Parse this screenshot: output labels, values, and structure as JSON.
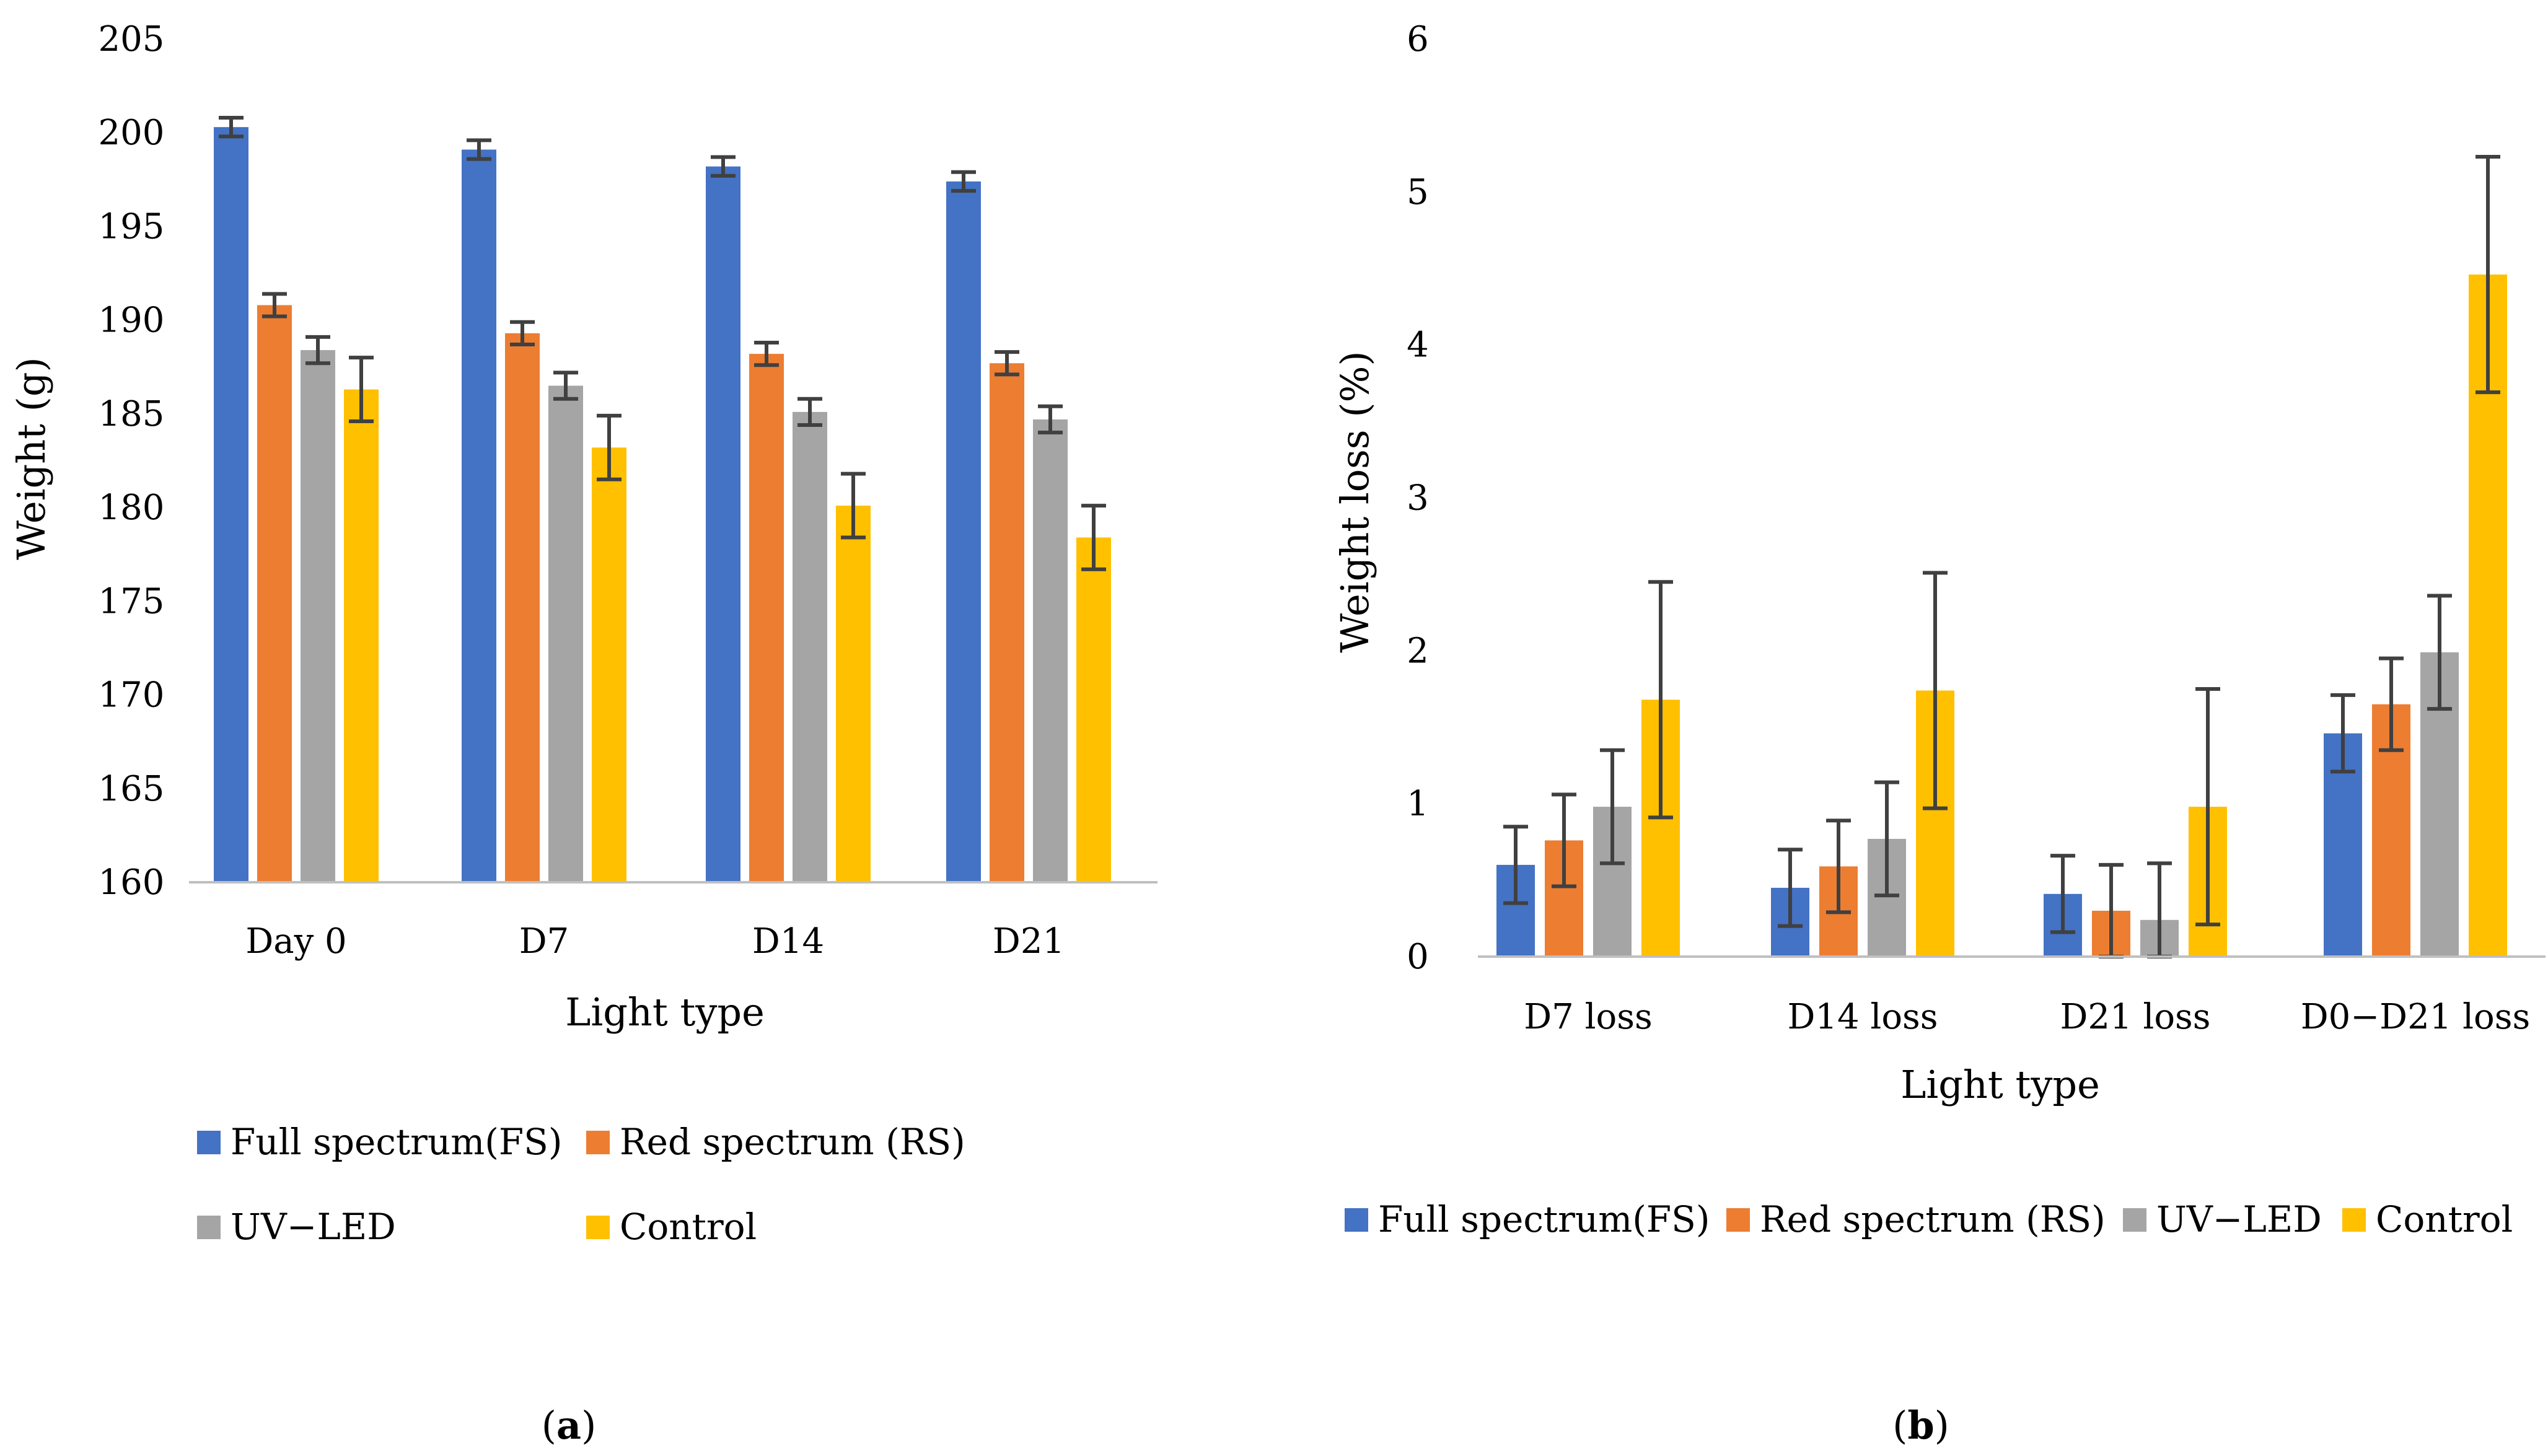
{
  "colors": {
    "fs": "#4472c4",
    "rs": "#ed7d31",
    "uv": "#a5a5a5",
    "control": "#ffc000",
    "error_bar": "#404040",
    "axis": "#bfbfbf"
  },
  "chart_data": [
    {
      "type": "bar",
      "panel": "a",
      "title": "",
      "xlabel": "Light type",
      "ylabel": "Weight (g)",
      "ylim": [
        160,
        205
      ],
      "yticks": [
        160,
        165,
        170,
        175,
        180,
        185,
        190,
        195,
        200,
        205
      ],
      "grid": false,
      "legend": {
        "placement": "bottom",
        "columns": 2
      },
      "categories": [
        "Day 0",
        "D7",
        "D14",
        "D21"
      ],
      "series": [
        {
          "name": "Full spectrum(FS)",
          "color_key": "fs",
          "values": [
            200.3,
            199.1,
            198.2,
            197.4
          ],
          "errors": [
            0.5,
            0.5,
            0.5,
            0.5
          ]
        },
        {
          "name": "Red spectrum (RS)",
          "color_key": "rs",
          "values": [
            190.8,
            189.3,
            188.2,
            187.7
          ],
          "errors": [
            0.6,
            0.6,
            0.6,
            0.6
          ]
        },
        {
          "name": "UV−LED",
          "color_key": "uv",
          "values": [
            188.4,
            186.5,
            185.1,
            184.7
          ],
          "errors": [
            0.7,
            0.7,
            0.7,
            0.7
          ]
        },
        {
          "name": "Control",
          "color_key": "control",
          "values": [
            186.3,
            183.2,
            180.1,
            178.4
          ],
          "errors": [
            1.7,
            1.7,
            1.7,
            1.7
          ]
        }
      ]
    },
    {
      "type": "bar",
      "panel": "b",
      "title": "",
      "xlabel": "Light type",
      "ylabel": "Weight loss (%)",
      "ylim": [
        0,
        6
      ],
      "yticks": [
        0,
        1,
        2,
        3,
        4,
        5,
        6
      ],
      "grid": false,
      "legend": {
        "placement": "bottom",
        "columns": 4
      },
      "categories": [
        "D7 loss",
        "D14 loss",
        "D21 loss",
        "D0−D21 loss"
      ],
      "series": [
        {
          "name": "Full spectrum(FS)",
          "color_key": "fs",
          "values": [
            0.6,
            0.45,
            0.41,
            1.46
          ],
          "errors": [
            0.25,
            0.25,
            0.25,
            0.25
          ]
        },
        {
          "name": "Red spectrum (RS)",
          "color_key": "rs",
          "values": [
            0.76,
            0.59,
            0.3,
            1.65
          ],
          "errors": [
            0.3,
            0.3,
            0.3,
            0.3
          ]
        },
        {
          "name": "UV−LED",
          "color_key": "uv",
          "values": [
            0.98,
            0.77,
            0.24,
            1.99
          ],
          "errors": [
            0.37,
            0.37,
            0.37,
            0.37
          ]
        },
        {
          "name": "Control",
          "color_key": "control",
          "values": [
            1.68,
            1.74,
            0.98,
            4.46
          ],
          "errors": [
            0.77,
            0.77,
            0.77,
            0.77
          ]
        }
      ]
    }
  ],
  "panel_labels": [
    {
      "open": "(",
      "letter": "a",
      "close": ")"
    },
    {
      "open": "(",
      "letter": "b",
      "close": ")"
    }
  ]
}
